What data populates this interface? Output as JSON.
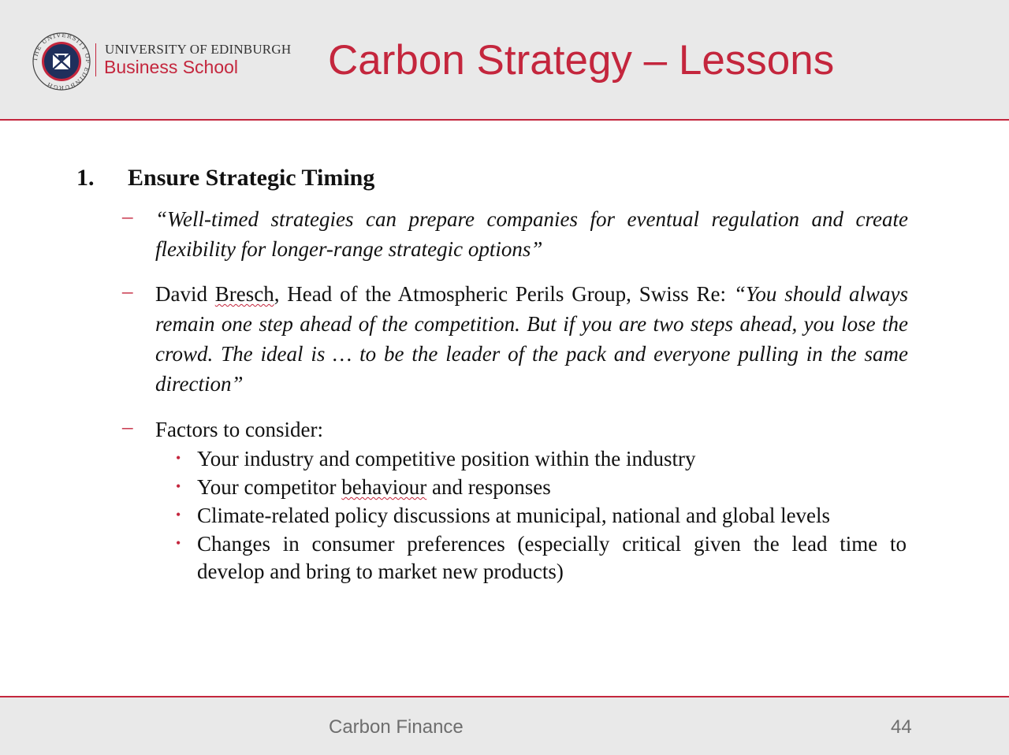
{
  "header": {
    "university": "UNIVERSITY OF EDINBURGH",
    "school": "Business School",
    "seal_text": "THE UNIVERSITY OF EDINBURGH",
    "title": "Carbon Strategy – Lessons"
  },
  "section": {
    "number": "1.",
    "heading": "Ensure Strategic Timing",
    "quote1": "“Well-timed strategies can prepare companies for eventual regulation and create flexibility for longer-range strategic options”",
    "quote2_prefix": "David ",
    "quote2_name_flag": "Bresch",
    "quote2_attrib": ", Head of the Atmospheric Perils Group, Swiss Re: ",
    "quote2_text": "“You should always remain one step ahead of the competition. But if you are two steps ahead, you lose the crowd. The ideal is … to be the leader of the pack and everyone pulling in the same direction”",
    "factors_label": "Factors to consider:",
    "factors": [
      "Your industry and competitive position within the industry",
      "Climate-related policy discussions at municipal, national and global levels",
      "Changes in consumer preferences (especially critical given the lead time to develop and bring to market new products)"
    ],
    "factor2_prefix": "Your competitor ",
    "factor2_flag": "behaviour",
    "factor2_suffix": " and responses",
    "dash_symbol": "–",
    "bullet_symbol": "•"
  },
  "footer": {
    "title": "Carbon Finance",
    "page": "44"
  },
  "colors": {
    "accent": "#c4263d",
    "band": "#e9e9e9",
    "footer_text": "#6e6e6e"
  }
}
